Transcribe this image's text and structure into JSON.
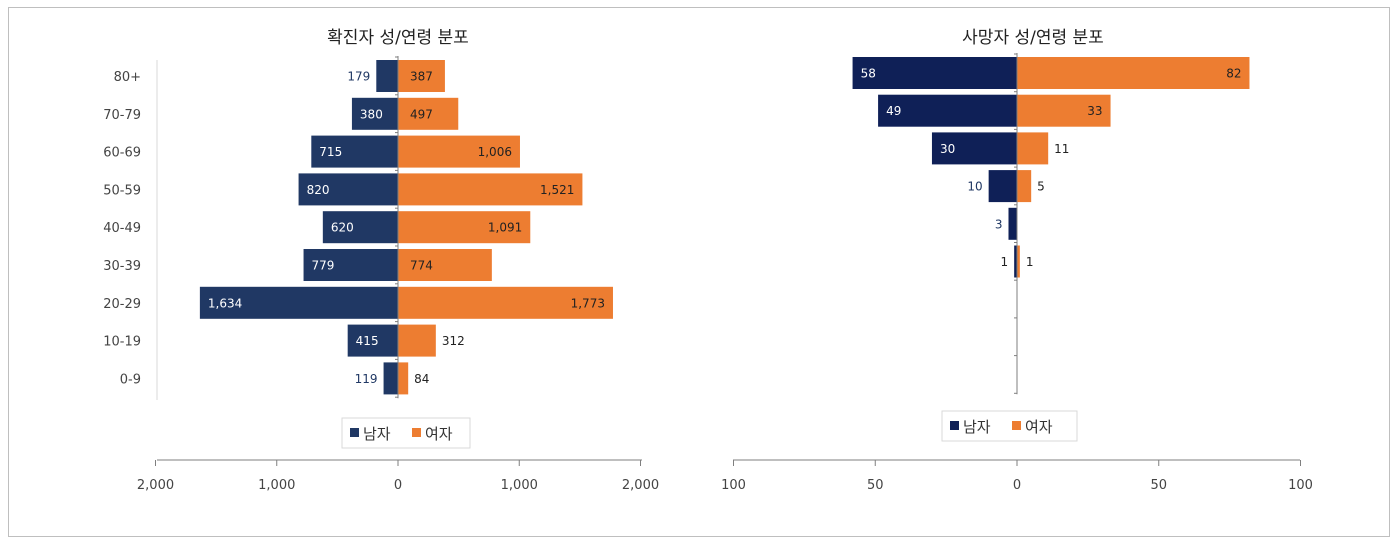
{
  "chart_data": [
    {
      "type": "bar",
      "orientation": "horizontal",
      "title": "확진자 성/연령 분포",
      "categories": [
        "80+",
        "70-79",
        "60-69",
        "50-59",
        "40-49",
        "30-39",
        "20-29",
        "10-19",
        "0-9"
      ],
      "series": [
        {
          "name": "남자",
          "values": [
            179,
            380,
            715,
            820,
            620,
            779,
            1634,
            415,
            119
          ],
          "labels": [
            "179",
            "380",
            "715",
            "820",
            "620",
            "779",
            "1,634",
            "415",
            "119"
          ],
          "color": "#203864",
          "direction": "left"
        },
        {
          "name": "여자",
          "values": [
            387,
            497,
            1006,
            1521,
            1091,
            774,
            1773,
            312,
            84
          ],
          "labels": [
            "387",
            "497",
            "1,006",
            "1,521",
            "1,091",
            "774",
            "1,773",
            "312",
            "84"
          ],
          "color": "#ED7D31",
          "direction": "right"
        }
      ],
      "xlim": [
        -2000,
        2000
      ],
      "xticks": [
        -2000,
        -1000,
        0,
        1000,
        2000
      ],
      "xtick_labels": [
        "2,000",
        "1,000",
        "0",
        "1,000",
        "2,000"
      ],
      "legend_placement": "bottom"
    },
    {
      "type": "bar",
      "orientation": "horizontal",
      "title": "사망자 성/연령 분포",
      "categories": [
        "80+",
        "70-79",
        "60-69",
        "50-59",
        "40-49",
        "30-39",
        "20-29",
        "10-19",
        "0-9"
      ],
      "series": [
        {
          "name": "남자",
          "values": [
            58,
            49,
            30,
            10,
            3,
            1,
            0,
            0,
            0
          ],
          "labels": [
            "58",
            "49",
            "30",
            "10",
            "3",
            "1",
            "",
            "",
            ""
          ],
          "color": "#0F2057",
          "direction": "left"
        },
        {
          "name": "여자",
          "values": [
            82,
            33,
            11,
            5,
            0,
            1,
            0,
            0,
            0
          ],
          "labels": [
            "82",
            "33",
            "11",
            "5",
            "",
            "1",
            "",
            "",
            ""
          ],
          "color": "#ED7D31",
          "direction": "right"
        }
      ],
      "xlim": [
        -100,
        100
      ],
      "xticks": [
        -100,
        -50,
        0,
        50,
        100
      ],
      "xtick_labels": [
        "100",
        "50",
        "0",
        "50",
        "100"
      ],
      "legend_placement": "bottom"
    }
  ]
}
